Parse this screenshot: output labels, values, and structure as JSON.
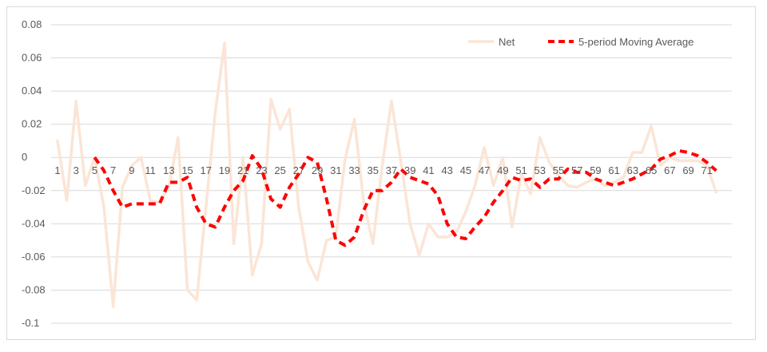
{
  "chart_data": {
    "type": "line",
    "title": "",
    "xlabel": "",
    "ylabel": "",
    "ylim": [
      -0.1,
      0.08
    ],
    "y_ticks": [
      0.08,
      0.06,
      0.04,
      0.02,
      0,
      -0.02,
      -0.04,
      -0.06,
      -0.08,
      -0.1
    ],
    "x_tick_labels": [
      1,
      3,
      5,
      7,
      9,
      11,
      13,
      15,
      17,
      19,
      21,
      23,
      25,
      27,
      29,
      31,
      33,
      35,
      37,
      39,
      41,
      43,
      45,
      47,
      49,
      51,
      53,
      55,
      57,
      59,
      61,
      63,
      65,
      67,
      69,
      71
    ],
    "grid": "horizontal",
    "legend_position": "top-right",
    "x": [
      1,
      2,
      3,
      4,
      5,
      6,
      7,
      8,
      9,
      10,
      11,
      12,
      13,
      14,
      15,
      16,
      17,
      18,
      19,
      20,
      21,
      22,
      23,
      24,
      25,
      26,
      27,
      28,
      29,
      30,
      31,
      32,
      33,
      34,
      35,
      36,
      37,
      38,
      39,
      40,
      41,
      42,
      43,
      44,
      45,
      46,
      47,
      48,
      49,
      50,
      51,
      52,
      53,
      54,
      55,
      56,
      57,
      58,
      59,
      60,
      61,
      62,
      63,
      64,
      65,
      66,
      67,
      68,
      69,
      70,
      71,
      72
    ],
    "series": [
      {
        "name": "Net",
        "color": "#fbe5d6",
        "style": "solid",
        "values": [
          0.01,
          -0.026,
          0.034,
          -0.017,
          0.0,
          -0.03,
          -0.09,
          -0.018,
          -0.005,
          0.0,
          -0.026,
          -0.027,
          -0.018,
          0.012,
          -0.08,
          -0.086,
          -0.03,
          0.027,
          0.069,
          -0.052,
          0.0,
          -0.071,
          -0.052,
          0.035,
          0.017,
          0.029,
          -0.03,
          -0.063,
          -0.074,
          -0.05,
          -0.048,
          -0.001,
          0.023,
          -0.027,
          -0.052,
          -0.005,
          0.034,
          -0.002,
          -0.04,
          -0.059,
          -0.04,
          -0.048,
          -0.048,
          -0.045,
          -0.033,
          -0.017,
          0.006,
          -0.017,
          0.0,
          -0.042,
          -0.01,
          -0.022,
          0.012,
          -0.003,
          -0.011,
          -0.017,
          -0.018,
          -0.015,
          -0.013,
          -0.017,
          -0.015,
          -0.012,
          0.003,
          0.003,
          0.019,
          -0.005,
          0.0,
          -0.002,
          -0.002,
          -0.002,
          -0.005,
          -0.021
        ]
      },
      {
        "name": "5-period Moving Average",
        "color": "#ff0000",
        "style": "dashed",
        "values": [
          null,
          null,
          null,
          null,
          0.0,
          -0.008,
          -0.02,
          -0.03,
          -0.028,
          -0.028,
          -0.028,
          -0.028,
          -0.015,
          -0.015,
          -0.012,
          -0.03,
          -0.04,
          -0.042,
          -0.03,
          -0.02,
          -0.014,
          0.001,
          -0.007,
          -0.025,
          -0.03,
          -0.018,
          -0.01,
          0.0,
          -0.003,
          -0.025,
          -0.05,
          -0.053,
          -0.048,
          -0.032,
          -0.02,
          -0.02,
          -0.015,
          -0.007,
          -0.012,
          -0.014,
          -0.016,
          -0.023,
          -0.04,
          -0.048,
          -0.049,
          -0.042,
          -0.036,
          -0.027,
          -0.02,
          -0.012,
          -0.014,
          -0.013,
          -0.018,
          -0.013,
          -0.013,
          -0.007,
          -0.009,
          -0.009,
          -0.013,
          -0.015,
          -0.017,
          -0.015,
          -0.013,
          -0.01,
          -0.007,
          -0.001,
          0.001,
          0.004,
          0.003,
          0.001,
          -0.003,
          -0.008
        ]
      }
    ]
  }
}
